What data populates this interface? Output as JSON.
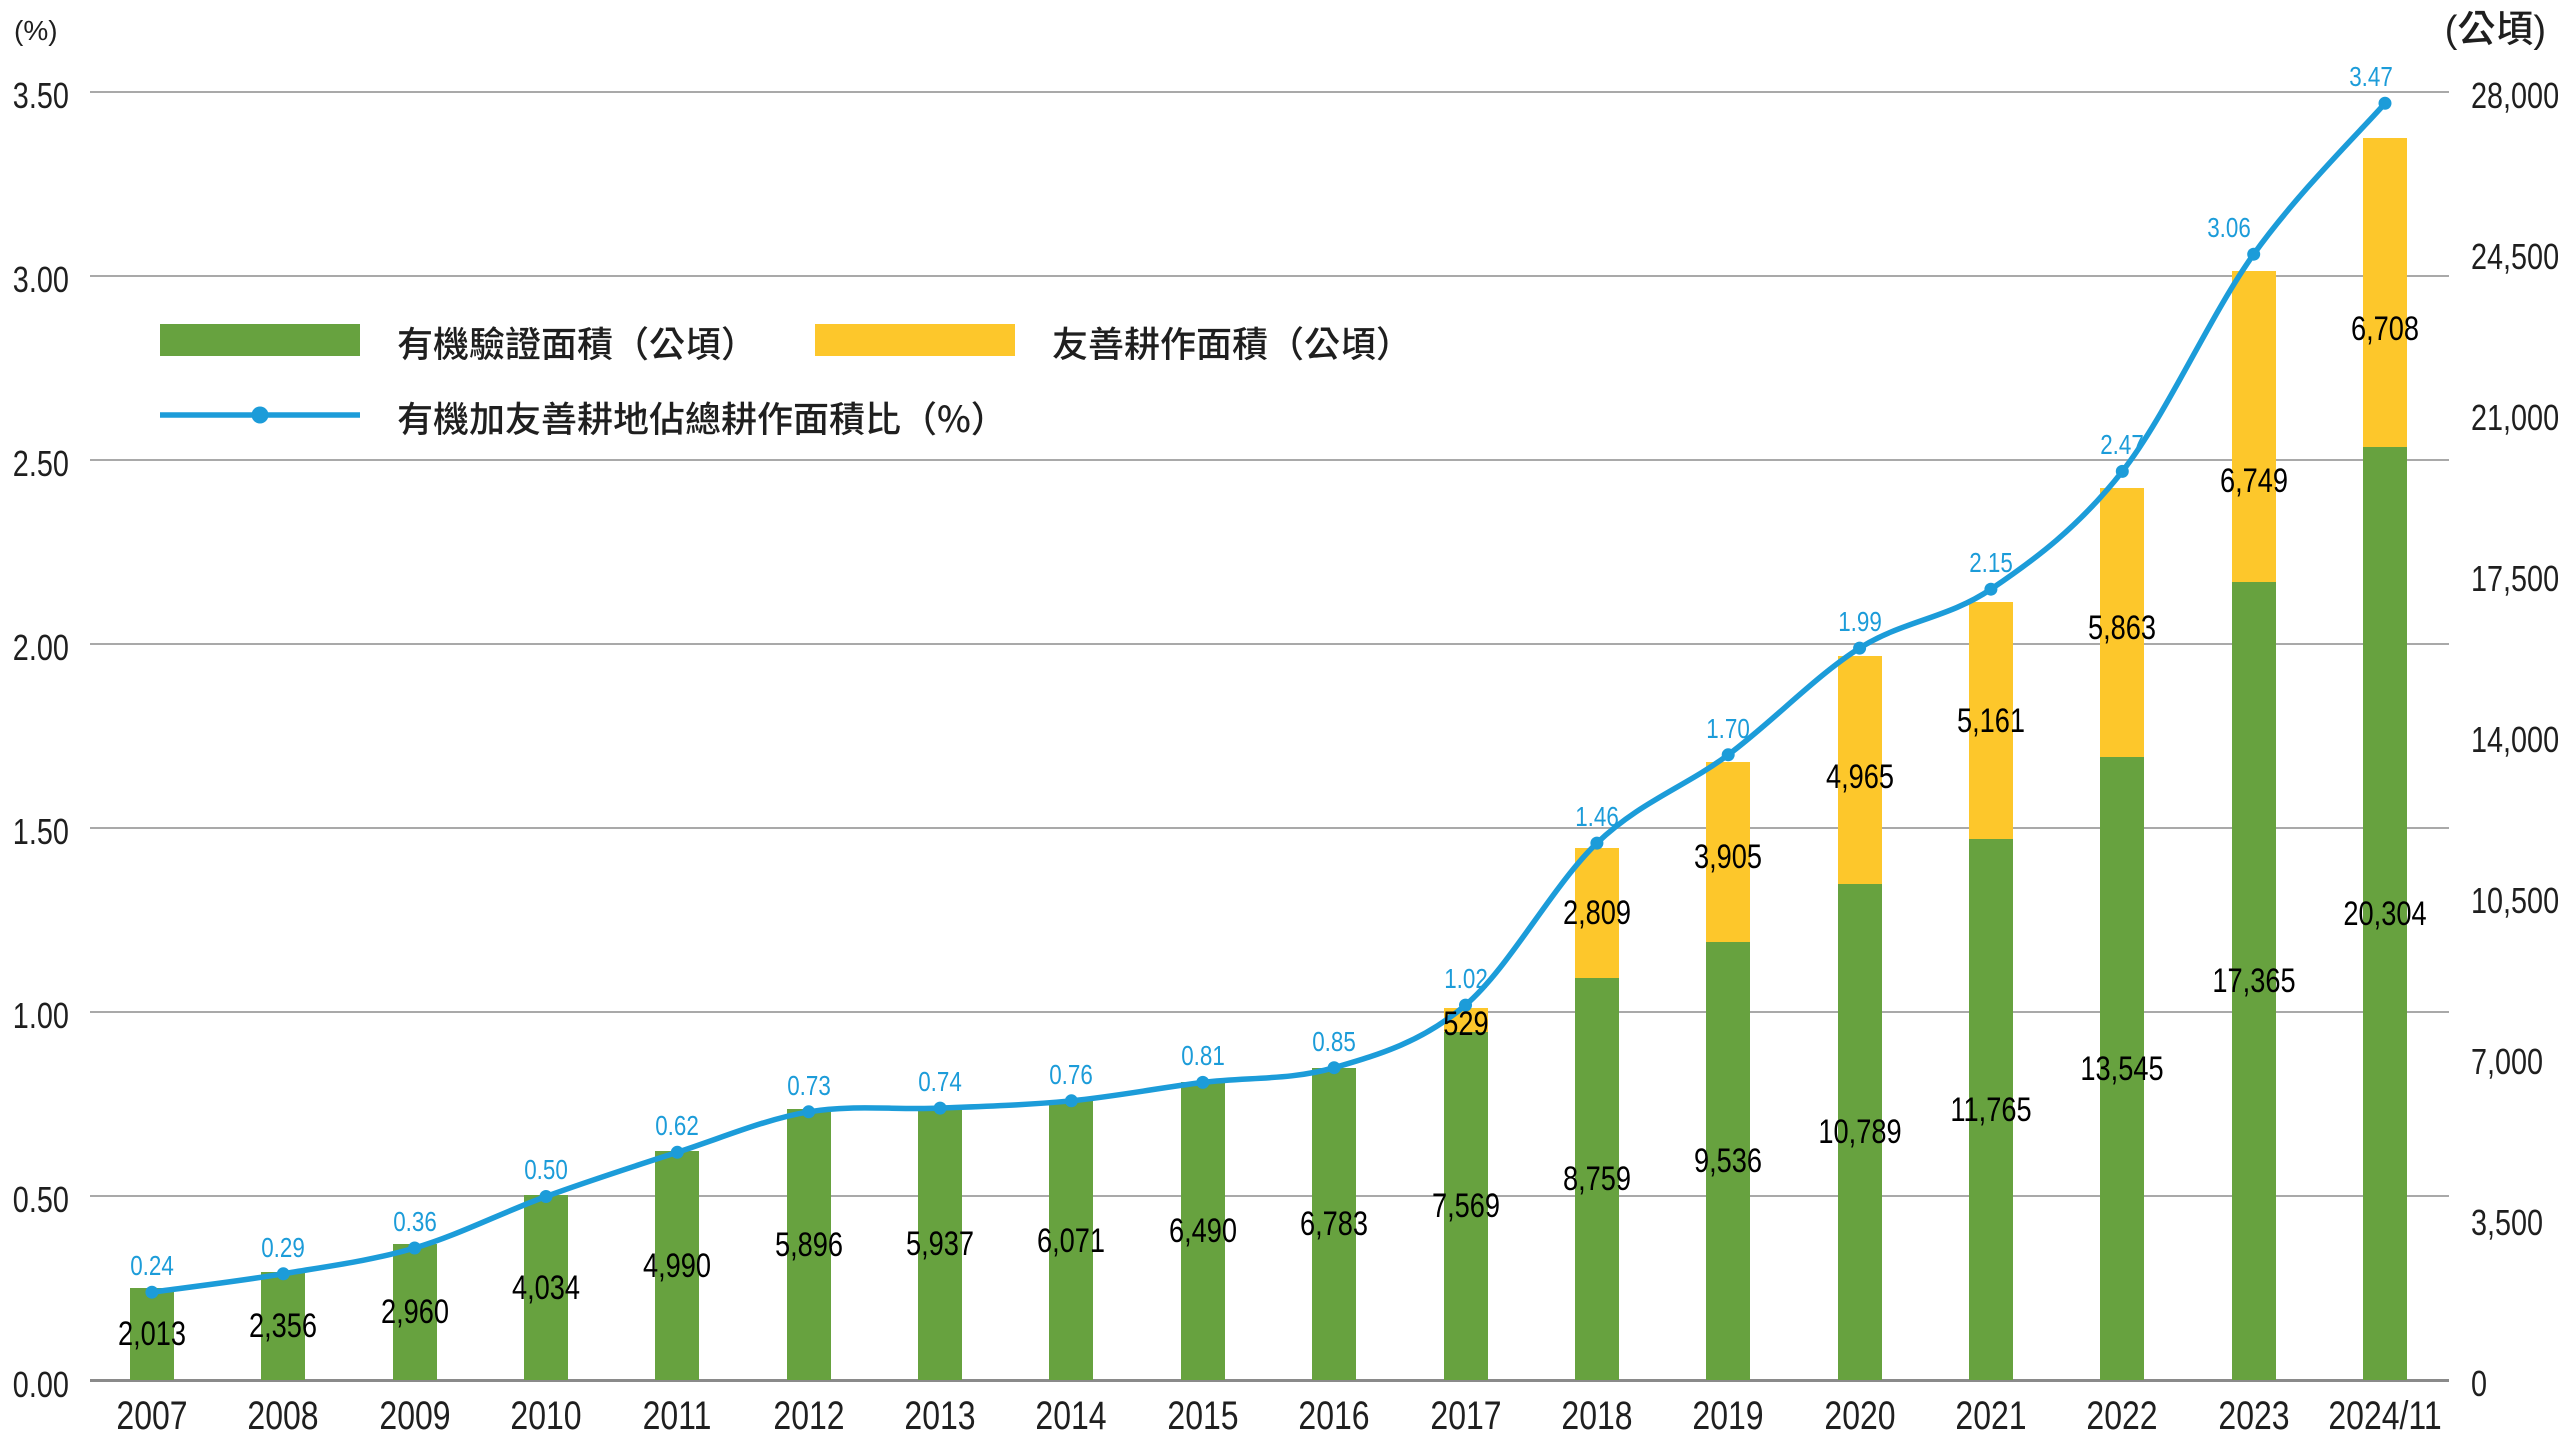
{
  "axes": {
    "left_header": "(%)",
    "right_header": "(公頃)",
    "left_ticks": [
      "0.00",
      "0.50",
      "1.00",
      "1.50",
      "2.00",
      "2.50",
      "3.00",
      "3.50"
    ],
    "right_ticks": [
      "0",
      "3,500",
      "7,000",
      "10,500",
      "14,000",
      "17,500",
      "21,000",
      "24,500",
      "28,000"
    ]
  },
  "legend": {
    "bar_green_label": "有機驗證面積（公頃）",
    "bar_yellow_label": "友善耕作面積（公頃）",
    "line_blue_label": "有機加友善耕地佔總耕作面積比（%）"
  },
  "colors": {
    "green": "#67A23F",
    "yellow": "#FDC72B",
    "blue": "#1C9CD9",
    "grid": "#A9A9A9",
    "axis_line": "#8A8A8A",
    "text": "#1f1f1f",
    "bar_label": "#000000"
  },
  "chart_data": {
    "type": "bar",
    "subtype": "stacked-bar-with-line",
    "categories": [
      "2007",
      "2008",
      "2009",
      "2010",
      "2011",
      "2012",
      "2013",
      "2014",
      "2015",
      "2016",
      "2017",
      "2018",
      "2019",
      "2020",
      "2021",
      "2022",
      "2023",
      "2024/11"
    ],
    "series": [
      {
        "name": "有機驗證面積（公頃）",
        "type": "bar",
        "axis": "right",
        "values": [
          2013,
          2356,
          2960,
          4034,
          4990,
          5896,
          5937,
          6071,
          6490,
          6783,
          7569,
          8759,
          9536,
          10789,
          11765,
          13545,
          17365,
          20304
        ],
        "labels": [
          "2,013",
          "2,356",
          "2,960",
          "4,034",
          "4,990",
          "5,896",
          "5,937",
          "6,071",
          "6,490",
          "6,783",
          "7,569",
          "8,759",
          "9,536",
          "10,789",
          "11,765",
          "13,545",
          "17,365",
          "20,304"
        ]
      },
      {
        "name": "友善耕作面積（公頃）",
        "type": "bar",
        "axis": "right",
        "values": [
          null,
          null,
          null,
          null,
          null,
          null,
          null,
          null,
          null,
          null,
          529,
          2809,
          3905,
          4965,
          5161,
          5863,
          6749,
          6708
        ],
        "labels": [
          null,
          null,
          null,
          null,
          null,
          null,
          null,
          null,
          null,
          null,
          "529",
          "2,809",
          "3,905",
          "4,965",
          "5,161",
          "5,863",
          "6,749",
          "6,708"
        ]
      },
      {
        "name": "有機加友善耕地佔總耕作面積比（%）",
        "type": "line",
        "axis": "left",
        "values": [
          0.24,
          0.29,
          0.36,
          0.5,
          0.62,
          0.73,
          0.74,
          0.76,
          0.81,
          0.85,
          1.02,
          1.46,
          1.7,
          1.99,
          2.15,
          2.47,
          3.06,
          3.47
        ],
        "labels": [
          "0.24",
          "0.29",
          "0.36",
          "0.50",
          "0.62",
          "0.73",
          "0.74",
          "0.76",
          "0.81",
          "0.85",
          "1.02",
          "1.46",
          "1.70",
          "1.99",
          "2.15",
          "2.47",
          "3.06",
          "3.47"
        ]
      }
    ],
    "ylim_left": [
      0,
      3.5
    ],
    "ylim_right": [
      0,
      28000
    ],
    "grid": true,
    "legend_position": "inside-top-left"
  }
}
